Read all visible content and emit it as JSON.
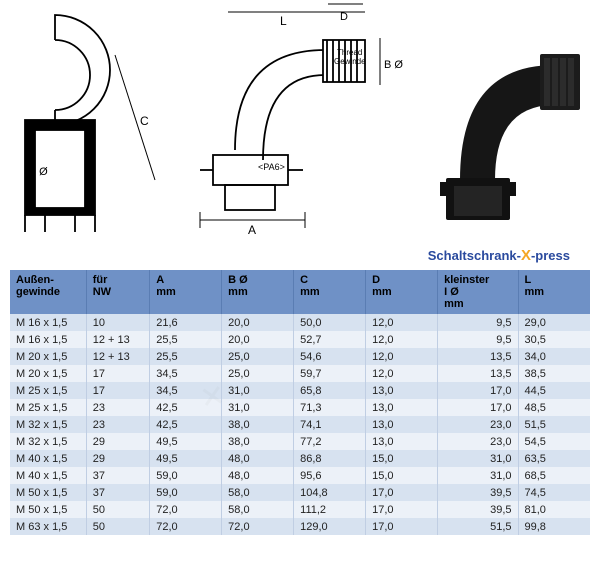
{
  "diagram": {
    "labels": {
      "A": "A",
      "B": "B Ø",
      "C": "C",
      "D": "D",
      "I": "I Ø",
      "L": "L",
      "thread": "Thread",
      "gewinde": "Gewinde",
      "pa6": "<PA6>"
    }
  },
  "logo": {
    "text_a": "Schaltschrank-",
    "text_x": "X",
    "text_b": "-press"
  },
  "table": {
    "header_bg": "#6f91c6",
    "row_odd_bg": "#d7e2f0",
    "row_even_bg": "#ecf1f8",
    "border_color": "#c0cee3",
    "font_size": 11,
    "columns": [
      {
        "key": "thread",
        "label_line1": "Außen-",
        "label_line2": "gewinde",
        "align": "left"
      },
      {
        "key": "nw",
        "label_line1": "für",
        "label_line2": "NW",
        "align": "left"
      },
      {
        "key": "a",
        "label_line1": "A",
        "label_line2": "mm",
        "align": "left"
      },
      {
        "key": "b",
        "label_line1": "B Ø",
        "label_line2": "mm",
        "align": "left"
      },
      {
        "key": "c",
        "label_line1": "C",
        "label_line2": "mm",
        "align": "left"
      },
      {
        "key": "d",
        "label_line1": "D",
        "label_line2": "mm",
        "align": "left"
      },
      {
        "key": "i",
        "label_line1": "kleinster",
        "label_line2": "I Ø",
        "label_line3": "mm",
        "align": "right"
      },
      {
        "key": "l",
        "label_line1": "L",
        "label_line2": "mm",
        "align": "left"
      }
    ],
    "rows": [
      {
        "thread": "M 16 x 1,5",
        "nw": "10",
        "a": "21,6",
        "b": "20,0",
        "c": "50,0",
        "d": "12,0",
        "i": "9,5",
        "l": "29,0"
      },
      {
        "thread": "M 16 x 1,5",
        "nw": "12 + 13",
        "a": "25,5",
        "b": "20,0",
        "c": "52,7",
        "d": "12,0",
        "i": "9,5",
        "l": "30,5"
      },
      {
        "thread": "M 20 x 1,5",
        "nw": "12 + 13",
        "a": "25,5",
        "b": "25,0",
        "c": "54,6",
        "d": "12,0",
        "i": "13,5",
        "l": "34,0"
      },
      {
        "thread": "M 20 x 1,5",
        "nw": "17",
        "a": "34,5",
        "b": "25,0",
        "c": "59,7",
        "d": "12,0",
        "i": "13,5",
        "l": "38,5"
      },
      {
        "thread": "M 25 x 1,5",
        "nw": "17",
        "a": "34,5",
        "b": "31,0",
        "c": "65,8",
        "d": "13,0",
        "i": "17,0",
        "l": "44,5"
      },
      {
        "thread": "M 25 x 1,5",
        "nw": "23",
        "a": "42,5",
        "b": "31,0",
        "c": "71,3",
        "d": "13,0",
        "i": "17,0",
        "l": "48,5"
      },
      {
        "thread": "M 32 x 1,5",
        "nw": "23",
        "a": "42,5",
        "b": "38,0",
        "c": "74,1",
        "d": "13,0",
        "i": "23,0",
        "l": "51,5"
      },
      {
        "thread": "M 32 x 1,5",
        "nw": "29",
        "a": "49,5",
        "b": "38,0",
        "c": "77,2",
        "d": "13,0",
        "i": "23,0",
        "l": "54,5"
      },
      {
        "thread": "M 40 x 1,5",
        "nw": "29",
        "a": "49,5",
        "b": "48,0",
        "c": "86,8",
        "d": "15,0",
        "i": "31,0",
        "l": "63,5"
      },
      {
        "thread": "M 40 x 1,5",
        "nw": "37",
        "a": "59,0",
        "b": "48,0",
        "c": "95,6",
        "d": "15,0",
        "i": "31,0",
        "l": "68,5"
      },
      {
        "thread": "M 50 x 1,5",
        "nw": "37",
        "a": "59,0",
        "b": "58,0",
        "c": "104,8",
        "d": "17,0",
        "i": "39,5",
        "l": "74,5"
      },
      {
        "thread": "M 50 x 1,5",
        "nw": "50",
        "a": "72,0",
        "b": "58,0",
        "c": "111,2",
        "d": "17,0",
        "i": "39,5",
        "l": "81,0"
      },
      {
        "thread": "M 63 x 1,5",
        "nw": "50",
        "a": "72,0",
        "b": "72,0",
        "c": "129,0",
        "d": "17,0",
        "i": "51,5",
        "l": "99,8"
      }
    ]
  }
}
